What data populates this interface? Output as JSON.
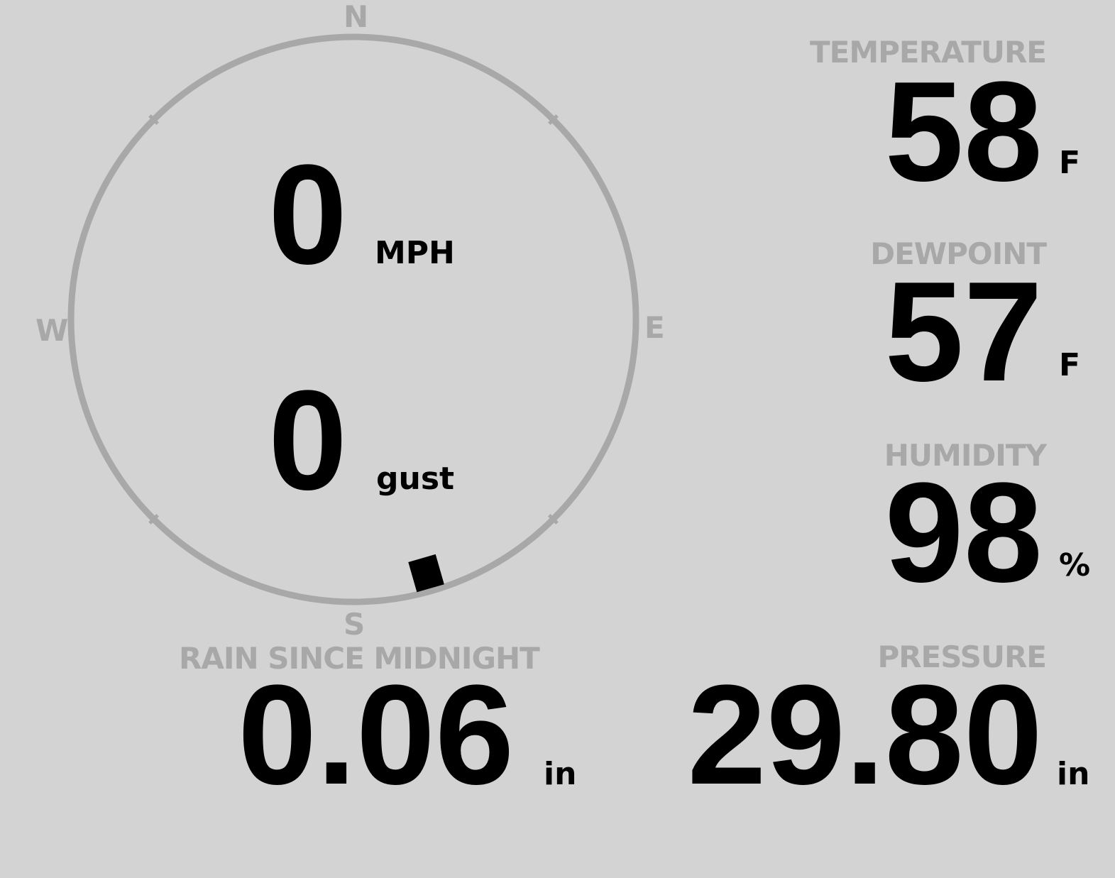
{
  "wind": {
    "speed": "0",
    "speed_unit": "MPH",
    "gust": "0",
    "gust_unit": "gust",
    "direction_deg": 164,
    "cardinals": {
      "n": "N",
      "e": "E",
      "s": "S",
      "w": "W"
    }
  },
  "temperature": {
    "label": "TEMPERATURE",
    "value": "58",
    "unit": "F"
  },
  "dewpoint": {
    "label": "DEWPOINT",
    "value": "57",
    "unit": "F"
  },
  "humidity": {
    "label": "HUMIDITY",
    "value": "98",
    "unit": "%"
  },
  "rain": {
    "label": "RAIN SINCE MIDNIGHT",
    "value": "0.06",
    "unit": "in"
  },
  "pressure": {
    "label": "PRESSURE",
    "value": "29.80",
    "unit": "in"
  },
  "colors": {
    "background": "#d3d3d3",
    "label": "#a8a8a8",
    "value": "#000000"
  }
}
